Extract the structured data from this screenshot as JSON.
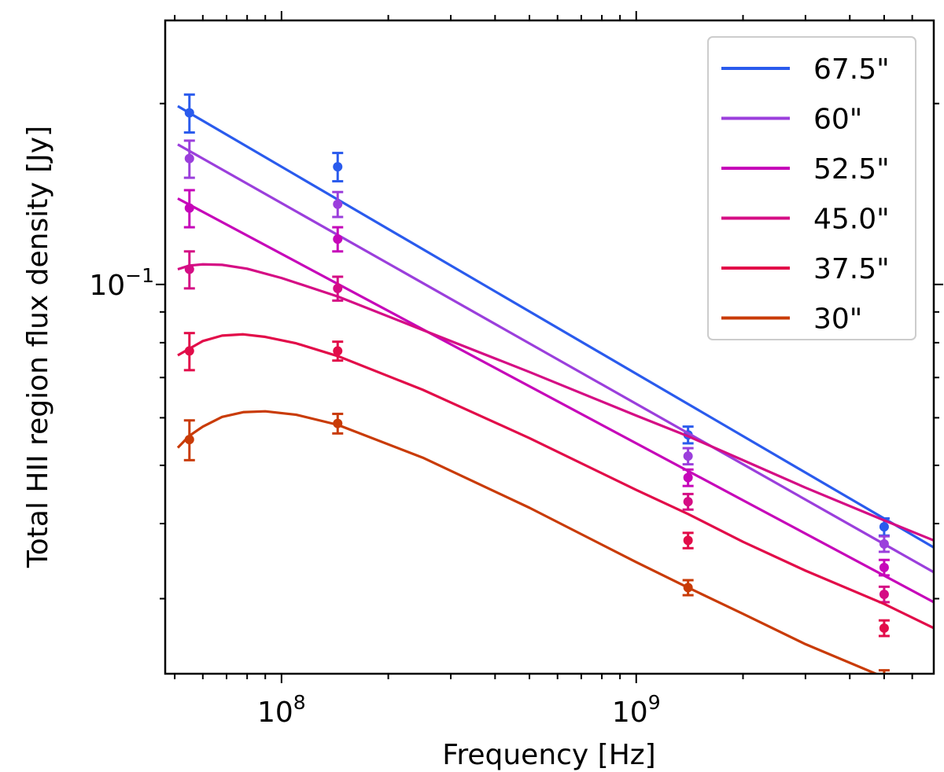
{
  "chart_data": {
    "type": "line",
    "title": "",
    "xlabel": "Frequency [Hz]",
    "ylabel": "Total HII region flux density [Jy]",
    "xscale": "log",
    "yscale": "log",
    "xlim": [
      47000000,
      6900000000
    ],
    "ylim": [
      0.0225,
      0.275
    ],
    "x_tick_labels": [
      {
        "value": 100000000,
        "base": "10",
        "exp": "8"
      },
      {
        "value": 1000000000,
        "base": "10",
        "exp": "9"
      }
    ],
    "y_tick_labels": [
      {
        "value": 0.1,
        "base": "10",
        "exp": "−1"
      }
    ],
    "legend_position": "top-right",
    "series": [
      {
        "name": "67.5\"",
        "color": "#2a5bed",
        "fit": [
          [
            51000000,
            0.198
          ],
          [
            6900000000,
            0.0365
          ]
        ],
        "points": [
          {
            "x": 55000000,
            "y": 0.193,
            "err": 0.014
          },
          {
            "x": 144000000,
            "y": 0.157,
            "err": 0.0085
          },
          {
            "x": 1400000000,
            "y": 0.0562,
            "err": 0.0018
          },
          {
            "x": 5000000000,
            "y": 0.0395,
            "err": 0.0013
          }
        ]
      },
      {
        "name": "60\"",
        "color": "#9b3fdc",
        "fit": [
          [
            51000000,
            0.171
          ],
          [
            6900000000,
            0.0332
          ]
        ],
        "points": [
          {
            "x": 55000000,
            "y": 0.162,
            "err": 0.0115
          },
          {
            "x": 144000000,
            "y": 0.136,
            "err": 0.0065
          },
          {
            "x": 1400000000,
            "y": 0.0518,
            "err": 0.0016
          },
          {
            "x": 5000000000,
            "y": 0.037,
            "err": 0.0011
          }
        ]
      },
      {
        "name": "52.5\"",
        "color": "#c606b9",
        "fit": [
          [
            51000000,
            0.139
          ],
          [
            6900000000,
            0.0296
          ]
        ],
        "points": [
          {
            "x": 55000000,
            "y": 0.134,
            "err": 0.0095
          },
          {
            "x": 144000000,
            "y": 0.119,
            "err": 0.0055
          },
          {
            "x": 1400000000,
            "y": 0.0477,
            "err": 0.0015
          },
          {
            "x": 5000000000,
            "y": 0.0338,
            "err": 0.001
          }
        ]
      },
      {
        "name": "45.0\"",
        "color": "#d50d84",
        "fit": [
          [
            51000000,
            0.106
          ],
          [
            55000000,
            0.1075
          ],
          [
            60000000,
            0.108
          ],
          [
            68000000,
            0.1078
          ],
          [
            80000000,
            0.1062
          ],
          [
            100000000,
            0.1025
          ],
          [
            144000000,
            0.0955
          ],
          [
            250000000,
            0.084
          ],
          [
            500000000,
            0.0715
          ],
          [
            1000000000,
            0.0605
          ],
          [
            1400000000,
            0.0559
          ],
          [
            2000000000,
            0.051
          ],
          [
            3000000000,
            0.0459
          ],
          [
            5000000000,
            0.0405
          ],
          [
            6900000000,
            0.0375
          ]
        ],
        "points": [
          {
            "x": 55000000,
            "y": 0.106,
            "err": 0.0075
          },
          {
            "x": 144000000,
            "y": 0.0985,
            "err": 0.0045
          },
          {
            "x": 1400000000,
            "y": 0.0435,
            "err": 0.0013
          },
          {
            "x": 5000000000,
            "y": 0.0305,
            "err": 0.0009
          }
        ]
      },
      {
        "name": "37.5\"",
        "color": "#e20c49",
        "fit": [
          [
            51000000,
            0.0762
          ],
          [
            55000000,
            0.0782
          ],
          [
            60000000,
            0.0805
          ],
          [
            68000000,
            0.0822
          ],
          [
            78000000,
            0.0826
          ],
          [
            90000000,
            0.0818
          ],
          [
            110000000,
            0.0798
          ],
          [
            144000000,
            0.076
          ],
          [
            250000000,
            0.0668
          ],
          [
            500000000,
            0.0555
          ],
          [
            1000000000,
            0.0455
          ],
          [
            1400000000,
            0.0415
          ],
          [
            2000000000,
            0.0373
          ],
          [
            3000000000,
            0.0334
          ],
          [
            5000000000,
            0.0294
          ],
          [
            6900000000,
            0.0268
          ]
        ],
        "points": [
          {
            "x": 55000000,
            "y": 0.0775,
            "err": 0.0055
          },
          {
            "x": 144000000,
            "y": 0.0775,
            "err": 0.0028
          },
          {
            "x": 1400000000,
            "y": 0.0375,
            "err": 0.0011
          },
          {
            "x": 5000000000,
            "y": 0.0268,
            "err": 0.0008
          }
        ]
      },
      {
        "name": "30\"",
        "color": "#c93b06",
        "fit": [
          [
            51000000,
            0.0535
          ],
          [
            55000000,
            0.056
          ],
          [
            60000000,
            0.058
          ],
          [
            68000000,
            0.0602
          ],
          [
            78000000,
            0.0613
          ],
          [
            90000000,
            0.0615
          ],
          [
            110000000,
            0.0607
          ],
          [
            144000000,
            0.0584
          ],
          [
            250000000,
            0.0515
          ],
          [
            500000000,
            0.0425
          ],
          [
            1000000000,
            0.0345
          ],
          [
            1400000000,
            0.0313
          ],
          [
            2000000000,
            0.0283
          ],
          [
            3000000000,
            0.0252
          ],
          [
            5000000000,
            0.0222
          ],
          [
            6900000000,
            0.0205
          ]
        ],
        "points": [
          {
            "x": 55000000,
            "y": 0.0552,
            "err": 0.0042
          },
          {
            "x": 144000000,
            "y": 0.0587,
            "err": 0.0022
          },
          {
            "x": 1400000000,
            "y": 0.0313,
            "err": 0.0009
          },
          {
            "x": 5000000000,
            "y": 0.0221,
            "err": 0.0007
          }
        ]
      }
    ]
  }
}
